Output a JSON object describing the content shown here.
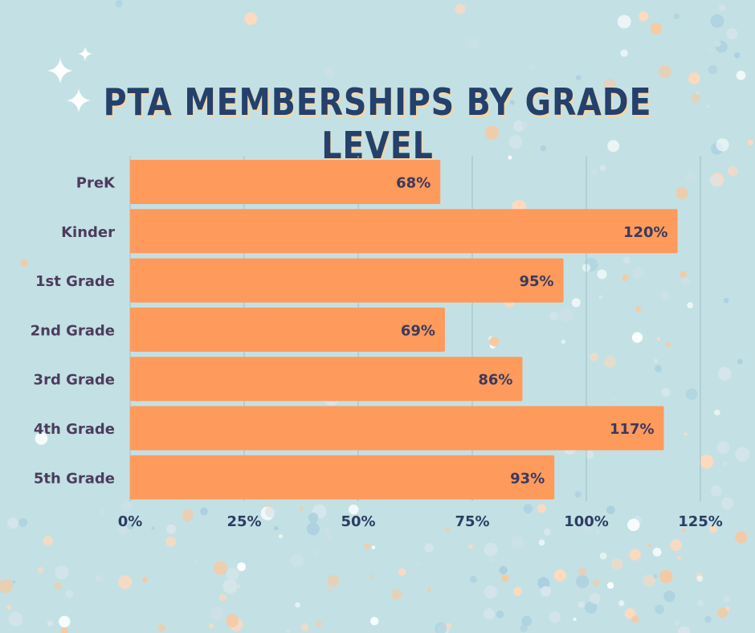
{
  "chart_data": {
    "type": "bar",
    "orientation": "horizontal",
    "title": "PTA MEMBERSHIPS BY GRADE LEVEL",
    "categories": [
      "PreK",
      "Kinder",
      "1st Grade",
      "2nd Grade",
      "3rd Grade",
      "4th Grade",
      "5th Grade"
    ],
    "values": [
      68,
      120,
      95,
      69,
      86,
      117,
      93
    ],
    "value_labels": [
      "68%",
      "120%",
      "95%",
      "69%",
      "86%",
      "117%",
      "93%"
    ],
    "xlim": [
      0,
      125
    ],
    "x_ticks": [
      0,
      25,
      50,
      75,
      100,
      125
    ],
    "x_tick_labels": [
      "0%",
      "25%",
      "50%",
      "75%",
      "100%",
      "125%"
    ],
    "xlabel": "",
    "ylabel": "",
    "grid": "vertical",
    "legend": "none"
  },
  "colors": {
    "background": "#c3e1e4",
    "bar": "#fe9a5c",
    "title": "#24406b",
    "title_shadow": "#f3d7a8",
    "category_text": "#4d3b5e",
    "value_text": "#3a3a5c",
    "tick_text": "#2c3d63",
    "gridline": "#9fc0c6"
  }
}
